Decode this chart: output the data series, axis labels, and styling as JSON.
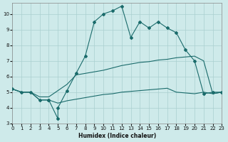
{
  "xlabel": "Humidex (Indice chaleur)",
  "xlim": [
    0,
    23
  ],
  "ylim": [
    3,
    10.7
  ],
  "yticks": [
    3,
    4,
    5,
    6,
    7,
    8,
    9,
    10
  ],
  "xticks": [
    0,
    1,
    2,
    3,
    4,
    5,
    6,
    7,
    8,
    9,
    10,
    11,
    12,
    13,
    14,
    15,
    16,
    17,
    18,
    19,
    20,
    21,
    22,
    23
  ],
  "bg_color": "#ceeaea",
  "line_color": "#1a6b6b",
  "grid_color": "#aacfcf",
  "series1_x": [
    0,
    1,
    2,
    3,
    4,
    4,
    5,
    5,
    6,
    7,
    8,
    9,
    10,
    11,
    12,
    13,
    14,
    15,
    16,
    17,
    18,
    19,
    20,
    21,
    22,
    23
  ],
  "series1_y": [
    5.2,
    5.0,
    5.0,
    4.5,
    4.5,
    4.5,
    3.3,
    4.0,
    5.1,
    6.2,
    7.3,
    9.5,
    10.0,
    10.2,
    10.5,
    8.5,
    9.5,
    9.1,
    9.5,
    9.1,
    8.8,
    7.7,
    7.0,
    4.9,
    5.0,
    5.0
  ],
  "series2_x": [
    0,
    1,
    2,
    3,
    4,
    5,
    6,
    7,
    8,
    9,
    10,
    11,
    12,
    13,
    14,
    15,
    16,
    17,
    18,
    19,
    20,
    21,
    22,
    23
  ],
  "series2_y": [
    5.2,
    5.0,
    5.0,
    4.7,
    4.7,
    5.1,
    5.5,
    6.1,
    6.2,
    6.3,
    6.4,
    6.55,
    6.7,
    6.8,
    6.9,
    6.95,
    7.05,
    7.1,
    7.2,
    7.25,
    7.3,
    7.0,
    4.9,
    5.0
  ],
  "series3_x": [
    0,
    1,
    2,
    3,
    4,
    5,
    6,
    7,
    8,
    9,
    10,
    11,
    12,
    13,
    14,
    15,
    16,
    17,
    18,
    19,
    20,
    21,
    22,
    23
  ],
  "series3_y": [
    5.2,
    5.0,
    5.0,
    4.5,
    4.5,
    4.3,
    4.45,
    4.55,
    4.65,
    4.75,
    4.85,
    4.9,
    5.0,
    5.05,
    5.1,
    5.15,
    5.2,
    5.25,
    5.0,
    4.95,
    4.9,
    5.0,
    4.9,
    5.0
  ]
}
